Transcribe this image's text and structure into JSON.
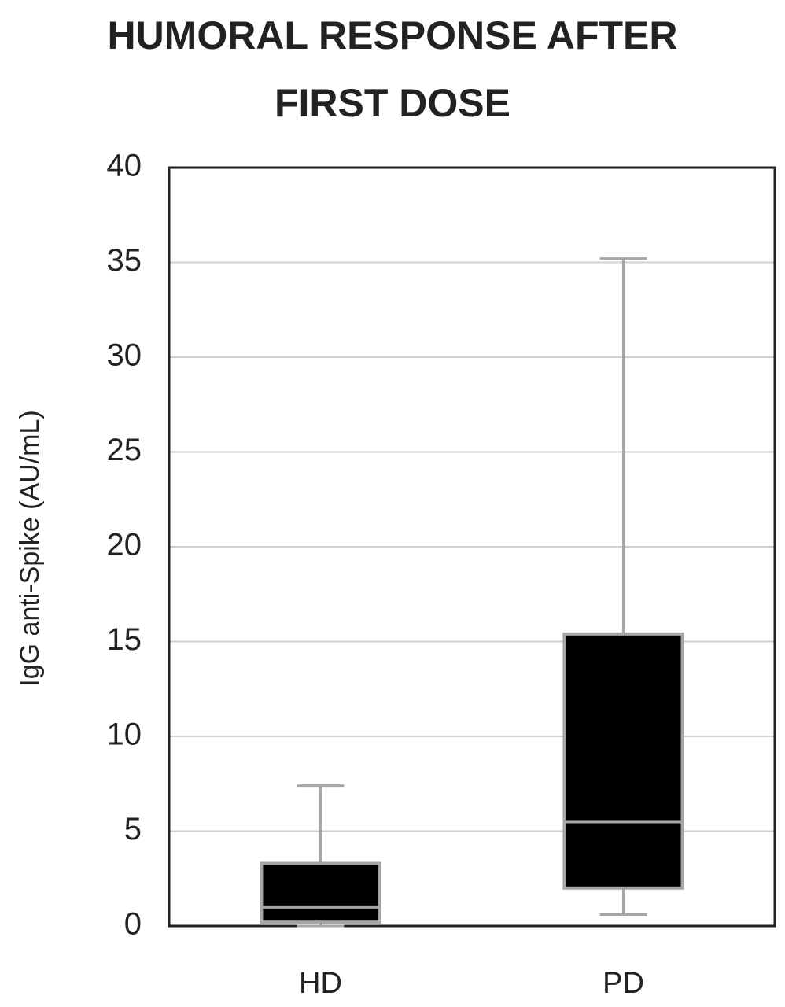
{
  "chart_data": {
    "type": "box",
    "title": "HUMORAL RESPONSE AFTER FIRST DOSE",
    "y_label": "IgG anti-Spike (AU/mL)",
    "categories": [
      "HD",
      "PD"
    ],
    "boxes": [
      {
        "min": 0,
        "q1": 0.2,
        "median": 1.0,
        "q3": 3.3,
        "max": 7.4
      },
      {
        "min": 0.6,
        "q1": 2.0,
        "median": 5.5,
        "q3": 15.4,
        "max": 35.2
      }
    ],
    "color": "#000000",
    "edge_color": "#a6a6a6",
    "ylim": [
      0,
      40
    ],
    "yticks": [
      0,
      5,
      10,
      15,
      20,
      25,
      30,
      35,
      40
    ],
    "grid": true
  }
}
